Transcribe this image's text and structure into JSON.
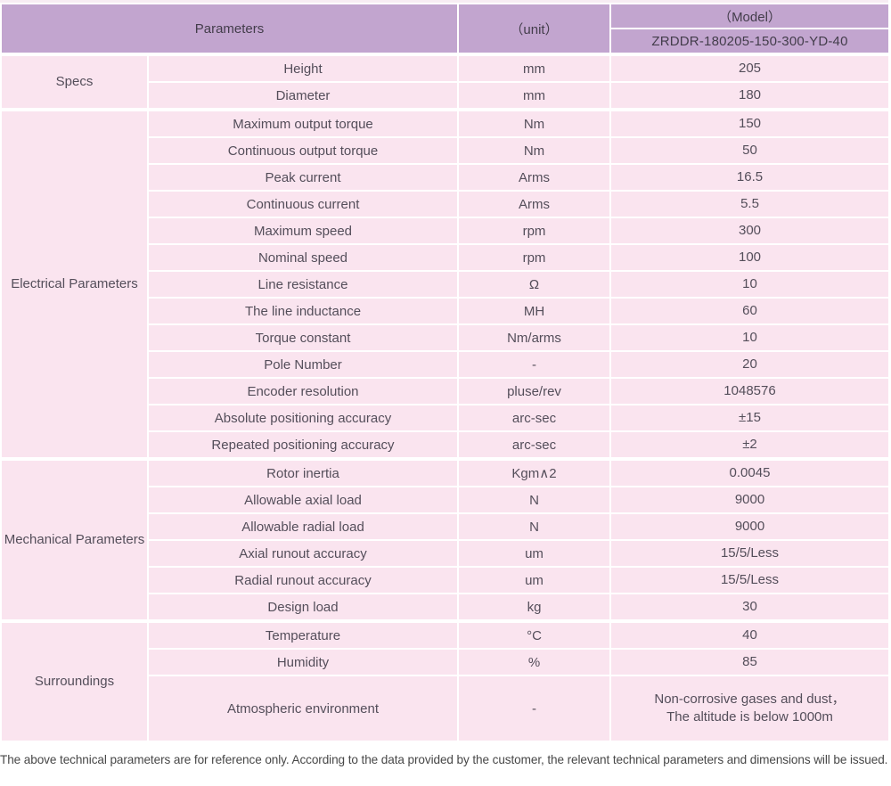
{
  "colors": {
    "header_purple": "#c2a5cf",
    "row_pink": "#fae4ef",
    "border_white": "#ffffff",
    "header_text": "#433d4b",
    "body_text": "#544e5a",
    "footer_text": "#474747"
  },
  "header": {
    "parameters_label": "Parameters",
    "unit_label": "（unit）",
    "model_label": "（Model）",
    "model_value": "ZRDDR-180205-150-300-YD-40"
  },
  "sections": [
    {
      "name": "Specs",
      "rows": [
        {
          "param": "Height",
          "unit": "mm",
          "value": "205"
        },
        {
          "param": "Diameter",
          "unit": "mm",
          "value": "180"
        }
      ]
    },
    {
      "name": "Electrical Parameters",
      "rows": [
        {
          "param": "Maximum output torque",
          "unit": "Nm",
          "value": "150"
        },
        {
          "param": "Continuous output torque",
          "unit": "Nm",
          "value": "50"
        },
        {
          "param": "Peak current",
          "unit": "Arms",
          "value": "16.5"
        },
        {
          "param": "Continuous current",
          "unit": "Arms",
          "value": "5.5"
        },
        {
          "param": "Maximum speed",
          "unit": "rpm",
          "value": "300"
        },
        {
          "param": "Nominal speed",
          "unit": "rpm",
          "value": "100"
        },
        {
          "param": "Line resistance",
          "unit": "Ω",
          "value": "10"
        },
        {
          "param": "The line inductance",
          "unit": "MH",
          "value": "60"
        },
        {
          "param": "Torque constant",
          "unit": "Nm/arms",
          "value": "10"
        },
        {
          "param": "Pole Number",
          "unit": "-",
          "value": "20"
        },
        {
          "param": "Encoder resolution",
          "unit": "pluse/rev",
          "value": "1048576"
        },
        {
          "param": "Absolute positioning accuracy",
          "unit": "arc-sec",
          "value": "±15"
        },
        {
          "param": "Repeated positioning accuracy",
          "unit": "arc-sec",
          "value": "±2"
        }
      ]
    },
    {
      "name": "Mechanical Parameters",
      "rows": [
        {
          "param": "Rotor inertia",
          "unit": "Kgm∧2",
          "value": "0.0045"
        },
        {
          "param": "Allowable axial load",
          "unit": "N",
          "value": "9000"
        },
        {
          "param": "Allowable radial load",
          "unit": "N",
          "value": "9000"
        },
        {
          "param": "Axial runout accuracy",
          "unit": "um",
          "value": "15/5/Less"
        },
        {
          "param": "Radial runout accuracy",
          "unit": "um",
          "value": "15/5/Less"
        },
        {
          "param": "Design load",
          "unit": "kg",
          "value": "30"
        }
      ]
    },
    {
      "name": "Surroundings",
      "rows": [
        {
          "param": "Temperature",
          "unit": "°C",
          "value": "40"
        },
        {
          "param": "Humidity",
          "unit": "%",
          "value": "85"
        },
        {
          "param": "Atmospheric environment",
          "unit": "-",
          "value": "Non-corrosive gases and dust，\nThe altitude is below 1000m",
          "tall": true
        }
      ]
    }
  ],
  "footer": {
    "note": "The above technical parameters are for reference only. According to the data provided by the customer, the relevant technical parameters and dimensions will be issued."
  }
}
